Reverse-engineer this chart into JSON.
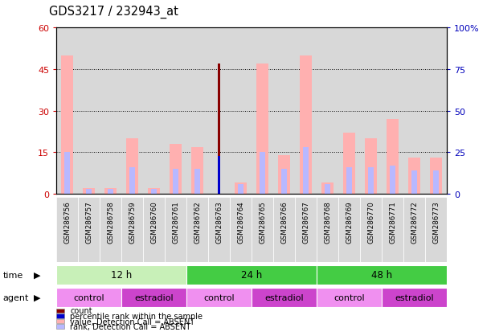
{
  "title": "GDS3217 / 232943_at",
  "samples": [
    "GSM286756",
    "GSM286757",
    "GSM286758",
    "GSM286759",
    "GSM286760",
    "GSM286761",
    "GSM286762",
    "GSM286763",
    "GSM286764",
    "GSM286765",
    "GSM286766",
    "GSM286767",
    "GSM286768",
    "GSM286769",
    "GSM286770",
    "GSM286771",
    "GSM286772",
    "GSM286773"
  ],
  "value_absent": [
    50,
    2,
    2,
    20,
    2,
    18,
    17,
    0,
    4,
    47,
    14,
    50,
    4,
    22,
    20,
    27,
    13,
    13
  ],
  "rank_absent": [
    25,
    3,
    3,
    16,
    3,
    15,
    15,
    0,
    6,
    25,
    15,
    28,
    6,
    16,
    16,
    17,
    14,
    14
  ],
  "count_present": [
    0,
    0,
    0,
    0,
    0,
    0,
    0,
    47,
    0,
    0,
    0,
    0,
    0,
    0,
    0,
    0,
    0,
    0
  ],
  "rank_present": [
    0,
    0,
    0,
    0,
    0,
    0,
    0,
    23,
    0,
    0,
    0,
    0,
    0,
    0,
    0,
    0,
    0,
    0
  ],
  "ylim_left": [
    0,
    60
  ],
  "ylim_right": [
    0,
    100
  ],
  "yticks_left": [
    0,
    15,
    30,
    45,
    60
  ],
  "yticks_right": [
    0,
    25,
    50,
    75,
    100
  ],
  "time_groups": [
    {
      "label": "12 h",
      "start": 0,
      "end": 6,
      "color": "#c8f0b8"
    },
    {
      "label": "24 h",
      "start": 6,
      "end": 12,
      "color": "#44cc44"
    },
    {
      "label": "48 h",
      "start": 12,
      "end": 18,
      "color": "#44cc44"
    }
  ],
  "agent_groups": [
    {
      "label": "control",
      "start": 0,
      "end": 3,
      "color": "#f090f0"
    },
    {
      "label": "estradiol",
      "start": 3,
      "end": 6,
      "color": "#cc44cc"
    },
    {
      "label": "control",
      "start": 6,
      "end": 9,
      "color": "#f090f0"
    },
    {
      "label": "estradiol",
      "start": 9,
      "end": 12,
      "color": "#cc44cc"
    },
    {
      "label": "control",
      "start": 12,
      "end": 15,
      "color": "#f090f0"
    },
    {
      "label": "estradiol",
      "start": 15,
      "end": 18,
      "color": "#cc44cc"
    }
  ],
  "color_value_absent": "#ffb0b0",
  "color_rank_absent": "#b8b8ff",
  "color_count_present": "#880000",
  "color_rank_present": "#0000cc",
  "bar_width": 0.55,
  "bg_color": "#d8d8d8",
  "left_label_color": "#cc0000",
  "right_label_color": "#0000bb"
}
